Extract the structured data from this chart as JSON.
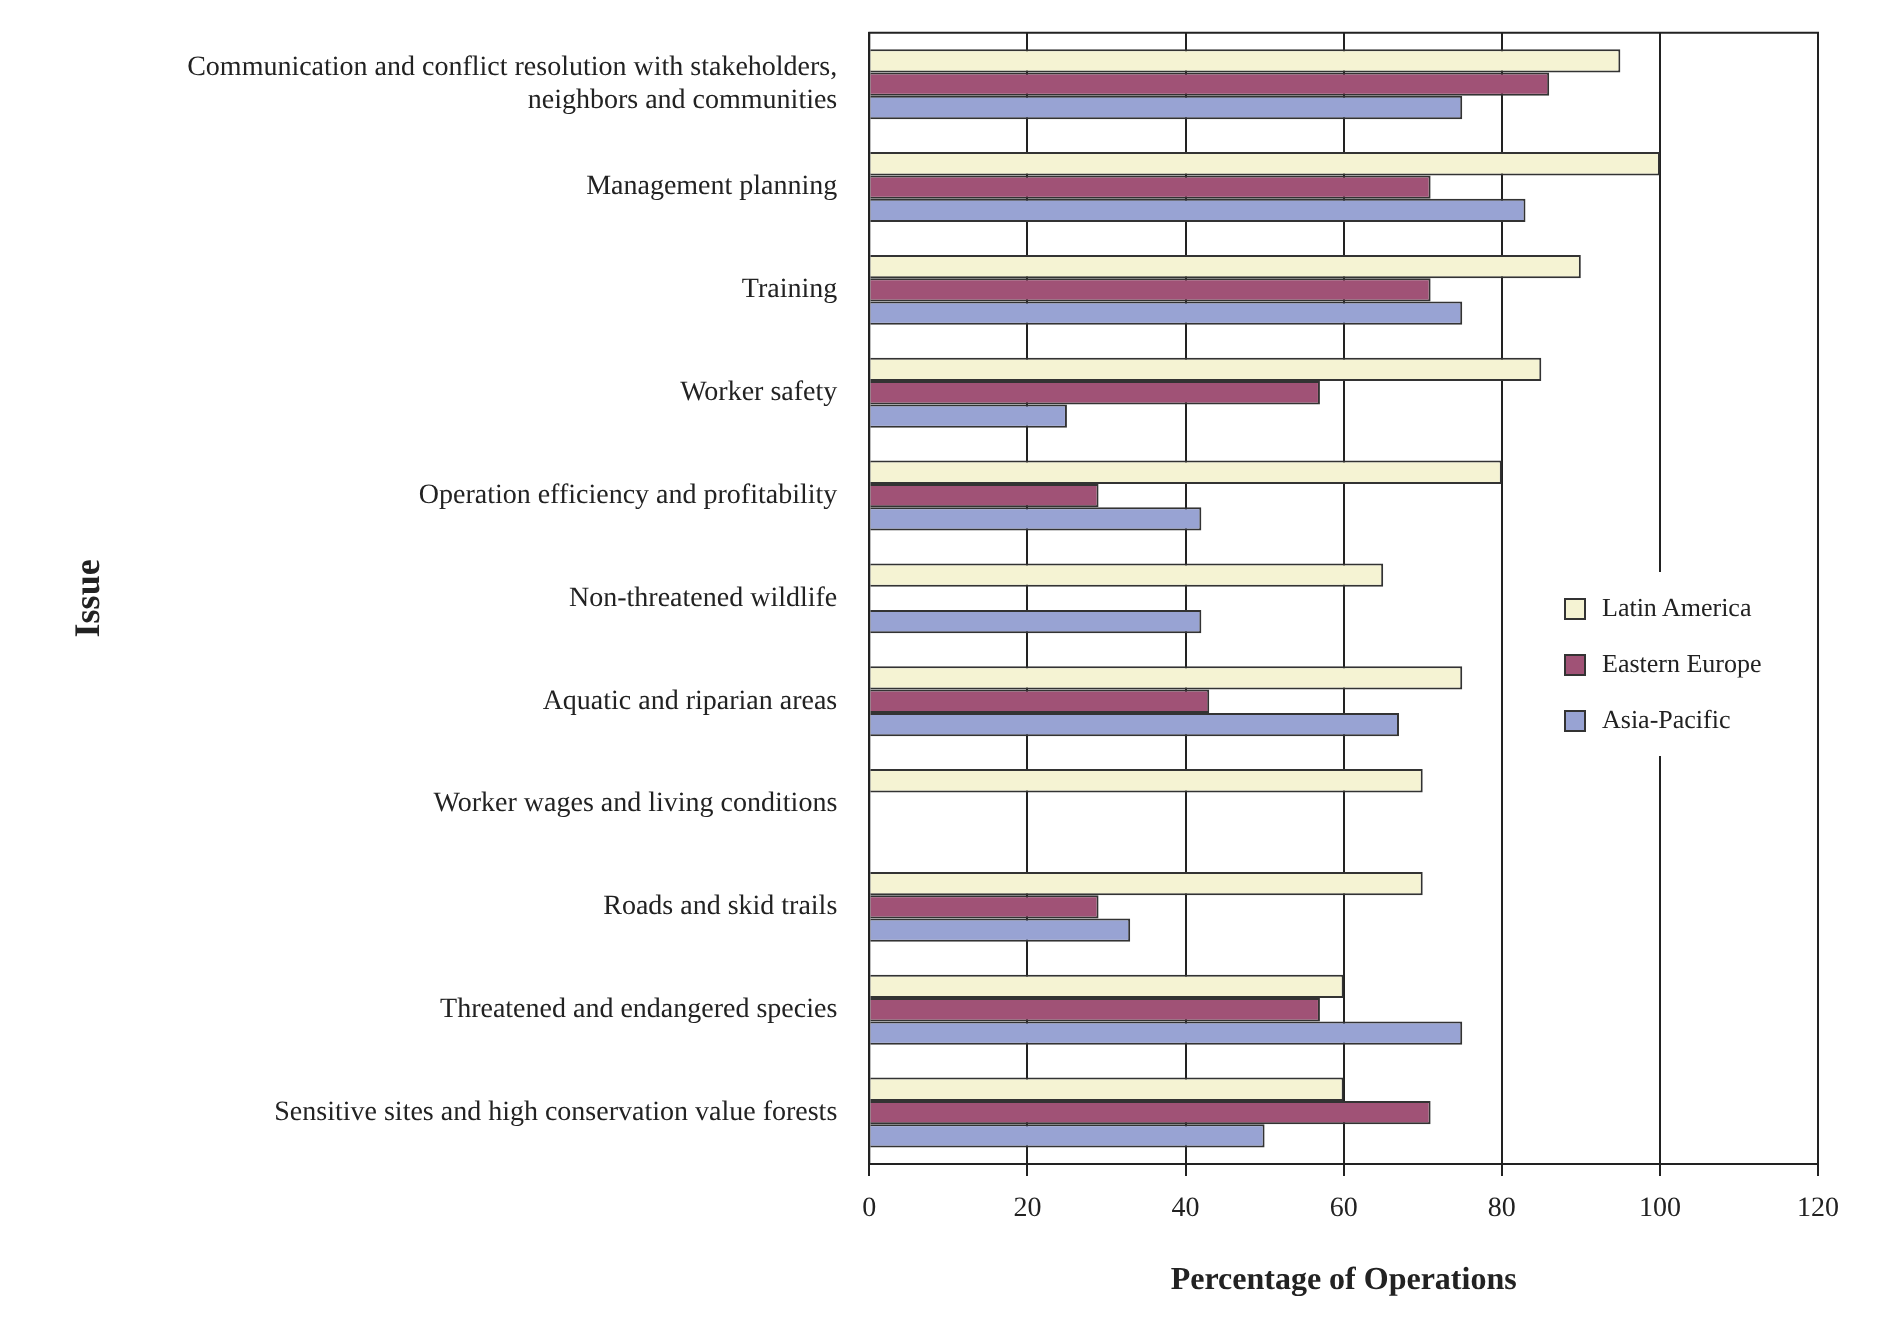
{
  "chart_data": {
    "type": "bar",
    "orientation": "horizontal",
    "xlabel": "Percentage of Operations",
    "ylabel": "Issue",
    "categories": [
      "Communication and conflict resolution with stakeholders, neighbors and communities",
      "Management planning",
      "Training",
      "Worker safety",
      "Operation efficiency and profitability",
      "Non-threatened wildlife",
      "Aquatic and riparian areas",
      "Worker wages and living conditions",
      "Roads and skid trails",
      "Threatened and endangered species",
      "Sensitive sites and high conservation value forests"
    ],
    "series": [
      {
        "name": "Latin America",
        "color": "#f5f3d3",
        "values": [
          95,
          100,
          90,
          85,
          80,
          65,
          75,
          70,
          70,
          60,
          60
        ]
      },
      {
        "name": "Eastern Europe",
        "color": "#a05276",
        "values": [
          86,
          71,
          71,
          57,
          29,
          null,
          43,
          null,
          29,
          57,
          71
        ]
      },
      {
        "name": "Asia-Pacific",
        "color": "#98a3d3",
        "values": [
          75,
          83,
          75,
          25,
          42,
          42,
          67,
          null,
          33,
          75,
          50
        ]
      }
    ],
    "xlim": [
      0,
      120
    ],
    "xticks": [
      0,
      20,
      40,
      60,
      80,
      100,
      120
    ],
    "grid": "x",
    "legend": "right"
  }
}
